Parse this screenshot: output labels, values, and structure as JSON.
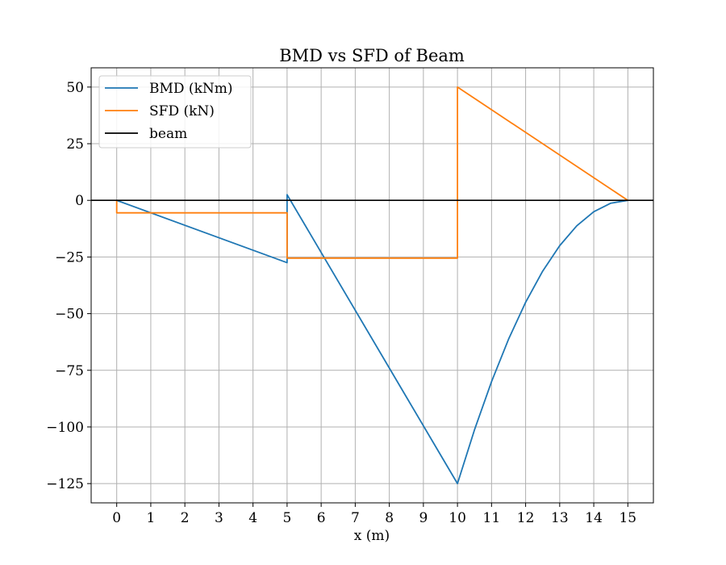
{
  "chart_data": {
    "type": "line",
    "title": "BMD vs SFD of Beam",
    "xlabel": "x (m)",
    "ylabel": "",
    "xlim": [
      -0.75,
      15.75
    ],
    "ylim": [
      -133.5,
      58.5
    ],
    "x_ticks": [
      0,
      1,
      2,
      3,
      4,
      5,
      6,
      7,
      8,
      9,
      10,
      11,
      12,
      13,
      14,
      15
    ],
    "y_ticks": [
      50,
      25,
      0,
      -25,
      -50,
      -75,
      -100,
      -125
    ],
    "y_tick_labels": [
      "50",
      "25",
      "0",
      "−25",
      "−50",
      "−75",
      "−100",
      "−125"
    ],
    "grid": true,
    "legend_position": "top-left",
    "series": [
      {
        "name": "BMD (kNm)",
        "color": "#1f77b4",
        "points": [
          [
            0,
            0
          ],
          [
            5,
            -27.5
          ],
          [
            5,
            2.5
          ],
          [
            10,
            -125
          ],
          [
            10.5,
            -101.25
          ],
          [
            11,
            -80
          ],
          [
            11.5,
            -61.25
          ],
          [
            12,
            -45
          ],
          [
            12.5,
            -31.25
          ],
          [
            13,
            -20
          ],
          [
            13.5,
            -11.25
          ],
          [
            14,
            -5
          ],
          [
            14.5,
            -1.25
          ],
          [
            15,
            0
          ]
        ]
      },
      {
        "name": "SFD (kN)",
        "color": "#ff7f0e",
        "points": [
          [
            0,
            0
          ],
          [
            0,
            -5.5
          ],
          [
            5,
            -5.5
          ],
          [
            5,
            -25.5
          ],
          [
            10,
            -25.5
          ],
          [
            10,
            50
          ],
          [
            15,
            0
          ]
        ]
      },
      {
        "name": "beam",
        "color": "#000000",
        "points": [
          [
            -0.75,
            0
          ],
          [
            15.75,
            0
          ]
        ]
      }
    ]
  }
}
